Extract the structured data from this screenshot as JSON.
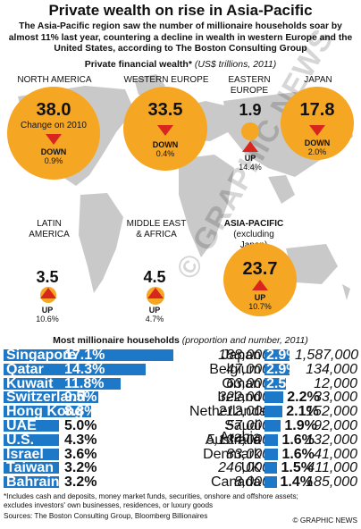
{
  "title": "Private wealth on rise in Asia-Pacific",
  "intro": "The Asia-Pacific region saw the number of millionaire households soar by almost 11% last year, countering a decline in wealth in western Europe and the United States, according to The Boston Consulting Group",
  "subhead": {
    "bold": "Private financial wealth*",
    "italic": "(US$ trillions, 2011)"
  },
  "regions": [
    {
      "name": "NORTH AMERICA",
      "value": "38.0",
      "note": "Change on 2010",
      "dir": "DOWN",
      "pct": "0.9%"
    },
    {
      "name": "WESTERN EUROPE",
      "value": "33.5",
      "dir": "DOWN",
      "pct": "0.4%"
    },
    {
      "name": "EASTERN EUROPE",
      "value": "1.9",
      "dir": "UP",
      "pct": "14.4%"
    },
    {
      "name": "JAPAN",
      "value": "17.8",
      "dir": "DOWN",
      "pct": "2.0%"
    },
    {
      "name": "LATIN AMERICA",
      "value": "3.5",
      "dir": "UP",
      "pct": "10.6%"
    },
    {
      "name": "MIDDLE EAST & AFRICA",
      "value": "4.5",
      "dir": "UP",
      "pct": "4.7%"
    },
    {
      "name": "ASIA-PACIFIC",
      "sub": "(excluding Japan)",
      "value": "23.7",
      "dir": "UP",
      "pct": "10.7%"
    }
  ],
  "table_head": {
    "bold": "Most millionaire households",
    "italic": "(proportion and number, 2011)"
  },
  "chart_data": {
    "type": "bar",
    "title": "Most millionaire households (proportion and number, 2011)",
    "series": [
      {
        "name": "left",
        "rows": [
          {
            "country": "Singapore",
            "pct": 17.1,
            "pct_label": "17.1%",
            "number": "188,000"
          },
          {
            "country": "Qatar",
            "pct": 14.3,
            "pct_label": "14.3%",
            "number": "47,000"
          },
          {
            "country": "Kuwait",
            "pct": 11.8,
            "pct_label": "11.8%",
            "number": "63,000"
          },
          {
            "country": "Switzerland",
            "pct": 9.5,
            "pct_label": "9.5%",
            "number": "322,000"
          },
          {
            "country": "Hong Kong",
            "pct": 8.8,
            "pct_label": "8.8%",
            "number": "212,000"
          },
          {
            "country": "UAE",
            "pct": 5.0,
            "pct_label": "5.0%",
            "number": "57,000"
          },
          {
            "country": "U.S.",
            "pct": 4.3,
            "pct_label": "4.3%",
            "number": "5,134,000"
          },
          {
            "country": "Israel",
            "pct": 3.6,
            "pct_label": "3.6%",
            "number": "83,000"
          },
          {
            "country": "Taiwan",
            "pct": 3.2,
            "pct_label": "3.2%",
            "number": "246,000"
          },
          {
            "country": "Bahrain",
            "pct": 3.2,
            "pct_label": "3.2%",
            "number": "8,000"
          }
        ]
      },
      {
        "name": "right",
        "rows": [
          {
            "country": "Japan",
            "pct": 2.9,
            "pct_label": "2.9%",
            "number": "1,587,000"
          },
          {
            "country": "Belgium",
            "pct": 2.9,
            "pct_label": "2.9%",
            "number": "134,000"
          },
          {
            "country": "Oman",
            "pct": 2.5,
            "pct_label": "2.5%",
            "number": "12,000"
          },
          {
            "country": "Ireland",
            "pct": 2.2,
            "pct_label": "2.2%",
            "number": "33,000"
          },
          {
            "country": "Netherlands",
            "pct": 2.1,
            "pct_label": "2.1%",
            "number": "152,000"
          },
          {
            "country": "Saudi Arabia",
            "pct": 1.9,
            "pct_label": "1.9%",
            "number": "92,000"
          },
          {
            "country": "Australia",
            "pct": 1.6,
            "pct_label": "1.6%",
            "number": "132,000"
          },
          {
            "country": "Denmark",
            "pct": 1.6,
            "pct_label": "1.6%",
            "number": "41,000"
          },
          {
            "country": "UK",
            "pct": 1.5,
            "pct_label": "1.5%",
            "number": "411,000"
          },
          {
            "country": "Canada",
            "pct": 1.4,
            "pct_label": "1.4%",
            "number": "185,000"
          }
        ]
      }
    ]
  },
  "footnote1": "*Includes cash and deposits, money market funds, securities, onshore and offshore assets;",
  "footnote2": "excludes investors' own businesses, residences, or luxury goods",
  "sources": "Sources: The Boston Consulting Group, Bloomberg Billionaires",
  "credit": "© GRAPHIC NEWS",
  "watermark": "© GRAPHIC NEWS",
  "colors": {
    "circle": "#f5a623",
    "bar": "#1e78c8",
    "arrow": "#d8261f",
    "map": "#c8c8c8"
  }
}
